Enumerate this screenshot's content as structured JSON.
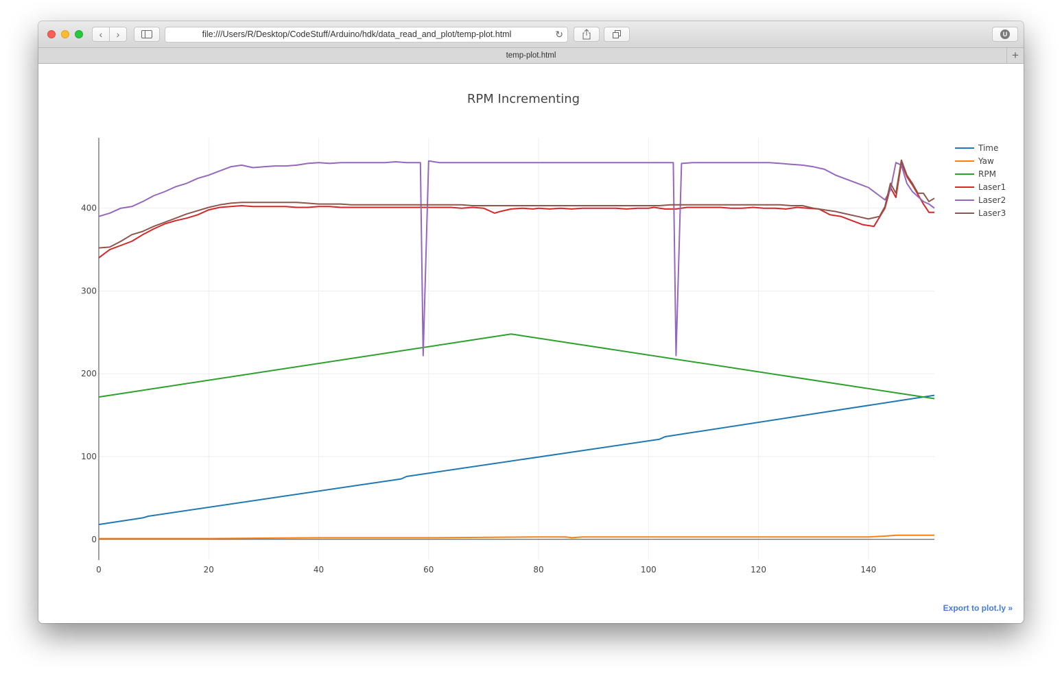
{
  "browser": {
    "url": "file:///Users/R/Desktop/CodeStuff/Arduino/hdk/data_read_and_plot/temp-plot.html",
    "tab_title": "temp-plot.html",
    "extension_badge": "U",
    "icons": [
      "back-icon",
      "forward-icon",
      "sidebar-icon",
      "reload-icon",
      "share-icon",
      "tabs-icon",
      "new-tab-icon"
    ]
  },
  "export_link": "Export to plot.ly »",
  "chart_data": {
    "type": "line",
    "title": "RPM Incrementing",
    "xlabel": "",
    "ylabel": "",
    "xlim": [
      0,
      152
    ],
    "ylim": [
      -25,
      485
    ],
    "xticks": [
      0,
      20,
      40,
      60,
      80,
      100,
      120,
      140
    ],
    "yticks": [
      0,
      100,
      200,
      300,
      400
    ],
    "grid": true,
    "legend_position": "top-right",
    "series": [
      {
        "name": "Time",
        "color": "#1f77b4",
        "x": [
          0,
          8,
          9,
          55,
          56,
          102,
          103,
          148,
          152
        ],
        "y": [
          18,
          26,
          28,
          73,
          76,
          121,
          124,
          170,
          174
        ]
      },
      {
        "name": "Yaw",
        "color": "#ff7f0e",
        "x": [
          0,
          20,
          40,
          60,
          80,
          85,
          86,
          88,
          100,
          120,
          140,
          143,
          145,
          152
        ],
        "y": [
          1,
          1,
          2,
          2,
          3,
          3,
          2,
          3,
          3,
          3,
          3,
          4,
          5,
          5
        ]
      },
      {
        "name": "RPM",
        "color": "#2ca02c",
        "x": [
          0,
          75,
          152
        ],
        "y": [
          172,
          248,
          170
        ]
      },
      {
        "name": "Laser1",
        "color": "#d62728",
        "x": [
          0,
          2,
          4,
          6,
          8,
          10,
          12,
          14,
          16,
          18,
          20,
          22,
          24,
          26,
          28,
          30,
          32,
          34,
          36,
          38,
          40,
          42,
          44,
          46,
          48,
          50,
          52,
          54,
          56,
          58,
          60,
          62,
          64,
          66,
          68,
          70,
          72,
          73,
          75,
          77,
          79,
          80,
          82,
          84,
          86,
          88,
          90,
          92,
          94,
          96,
          98,
          100,
          101,
          103,
          105,
          107,
          109,
          111,
          113,
          115,
          117,
          119,
          121,
          123,
          125,
          127,
          129,
          131,
          133,
          135,
          137,
          139,
          141,
          143,
          144,
          145,
          146,
          147,
          148,
          150,
          151,
          152
        ],
        "y": [
          340,
          350,
          355,
          360,
          368,
          375,
          381,
          385,
          388,
          392,
          398,
          401,
          402,
          403,
          402,
          402,
          402,
          402,
          401,
          401,
          402,
          402,
          401,
          401,
          401,
          401,
          401,
          401,
          401,
          401,
          401,
          401,
          401,
          400,
          401,
          400,
          394,
          396,
          399,
          400,
          399,
          400,
          399,
          400,
          399,
          400,
          400,
          400,
          400,
          399,
          400,
          400,
          401,
          399,
          399,
          401,
          401,
          401,
          401,
          400,
          400,
          401,
          400,
          400,
          399,
          401,
          400,
          399,
          392,
          390,
          385,
          380,
          378,
          400,
          425,
          413,
          455,
          438,
          428,
          405,
          395,
          395
        ]
      },
      {
        "name": "Laser2",
        "color": "#9467bd",
        "x": [
          0,
          2,
          4,
          6,
          8,
          10,
          12,
          14,
          16,
          18,
          20,
          22,
          24,
          26,
          28,
          30,
          32,
          34,
          36,
          38,
          40,
          42,
          44,
          46,
          48,
          50,
          52,
          54,
          56,
          58,
          58.5,
          59,
          60,
          62,
          64,
          66,
          68,
          70,
          72,
          74,
          76,
          78,
          80,
          82,
          84,
          86,
          88,
          90,
          92,
          94,
          96,
          98,
          100,
          102,
          104,
          104.5,
          105,
          106,
          108,
          110,
          112,
          114,
          116,
          118,
          120,
          122,
          124,
          126,
          128,
          130,
          132,
          134,
          136,
          138,
          140,
          142,
          143,
          144,
          145,
          146,
          147,
          148,
          150,
          151,
          152
        ],
        "y": [
          390,
          394,
          400,
          402,
          408,
          415,
          420,
          426,
          430,
          436,
          440,
          445,
          450,
          452,
          449,
          450,
          451,
          451,
          452,
          454,
          455,
          454,
          455,
          455,
          455,
          455,
          455,
          456,
          455,
          455,
          455,
          222,
          457,
          455,
          455,
          455,
          455,
          455,
          455,
          455,
          455,
          455,
          455,
          455,
          455,
          455,
          455,
          455,
          455,
          455,
          455,
          455,
          455,
          455,
          455,
          455,
          222,
          454,
          455,
          455,
          455,
          455,
          455,
          455,
          455,
          455,
          454,
          453,
          452,
          450,
          447,
          440,
          435,
          430,
          425,
          415,
          410,
          422,
          455,
          452,
          430,
          420,
          408,
          405,
          400
        ]
      },
      {
        "name": "Laser3",
        "color": "#8c564b",
        "x": [
          0,
          2,
          4,
          6,
          8,
          10,
          12,
          14,
          16,
          18,
          20,
          22,
          24,
          26,
          28,
          30,
          32,
          34,
          36,
          38,
          40,
          42,
          44,
          46,
          48,
          50,
          52,
          54,
          56,
          58,
          60,
          62,
          64,
          66,
          68,
          70,
          72,
          74,
          76,
          78,
          80,
          82,
          84,
          86,
          88,
          90,
          92,
          94,
          96,
          98,
          100,
          102,
          104,
          106,
          108,
          110,
          112,
          114,
          116,
          118,
          120,
          122,
          124,
          126,
          128,
          130,
          132,
          134,
          136,
          138,
          140,
          142,
          143,
          144,
          145,
          146,
          147,
          148,
          149,
          150,
          151,
          152
        ],
        "y": [
          352,
          353,
          360,
          368,
          372,
          378,
          383,
          388,
          393,
          397,
          401,
          404,
          406,
          407,
          407,
          407,
          407,
          407,
          407,
          406,
          405,
          405,
          405,
          404,
          404,
          404,
          404,
          404,
          404,
          404,
          404,
          404,
          404,
          404,
          403,
          403,
          403,
          403,
          403,
          403,
          403,
          403,
          403,
          403,
          403,
          403,
          403,
          403,
          403,
          403,
          403,
          403,
          404,
          404,
          404,
          404,
          404,
          404,
          404,
          404,
          404,
          404,
          404,
          403,
          403,
          400,
          398,
          396,
          393,
          390,
          387,
          390,
          402,
          430,
          418,
          458,
          440,
          430,
          418,
          418,
          408,
          412
        ]
      }
    ]
  }
}
